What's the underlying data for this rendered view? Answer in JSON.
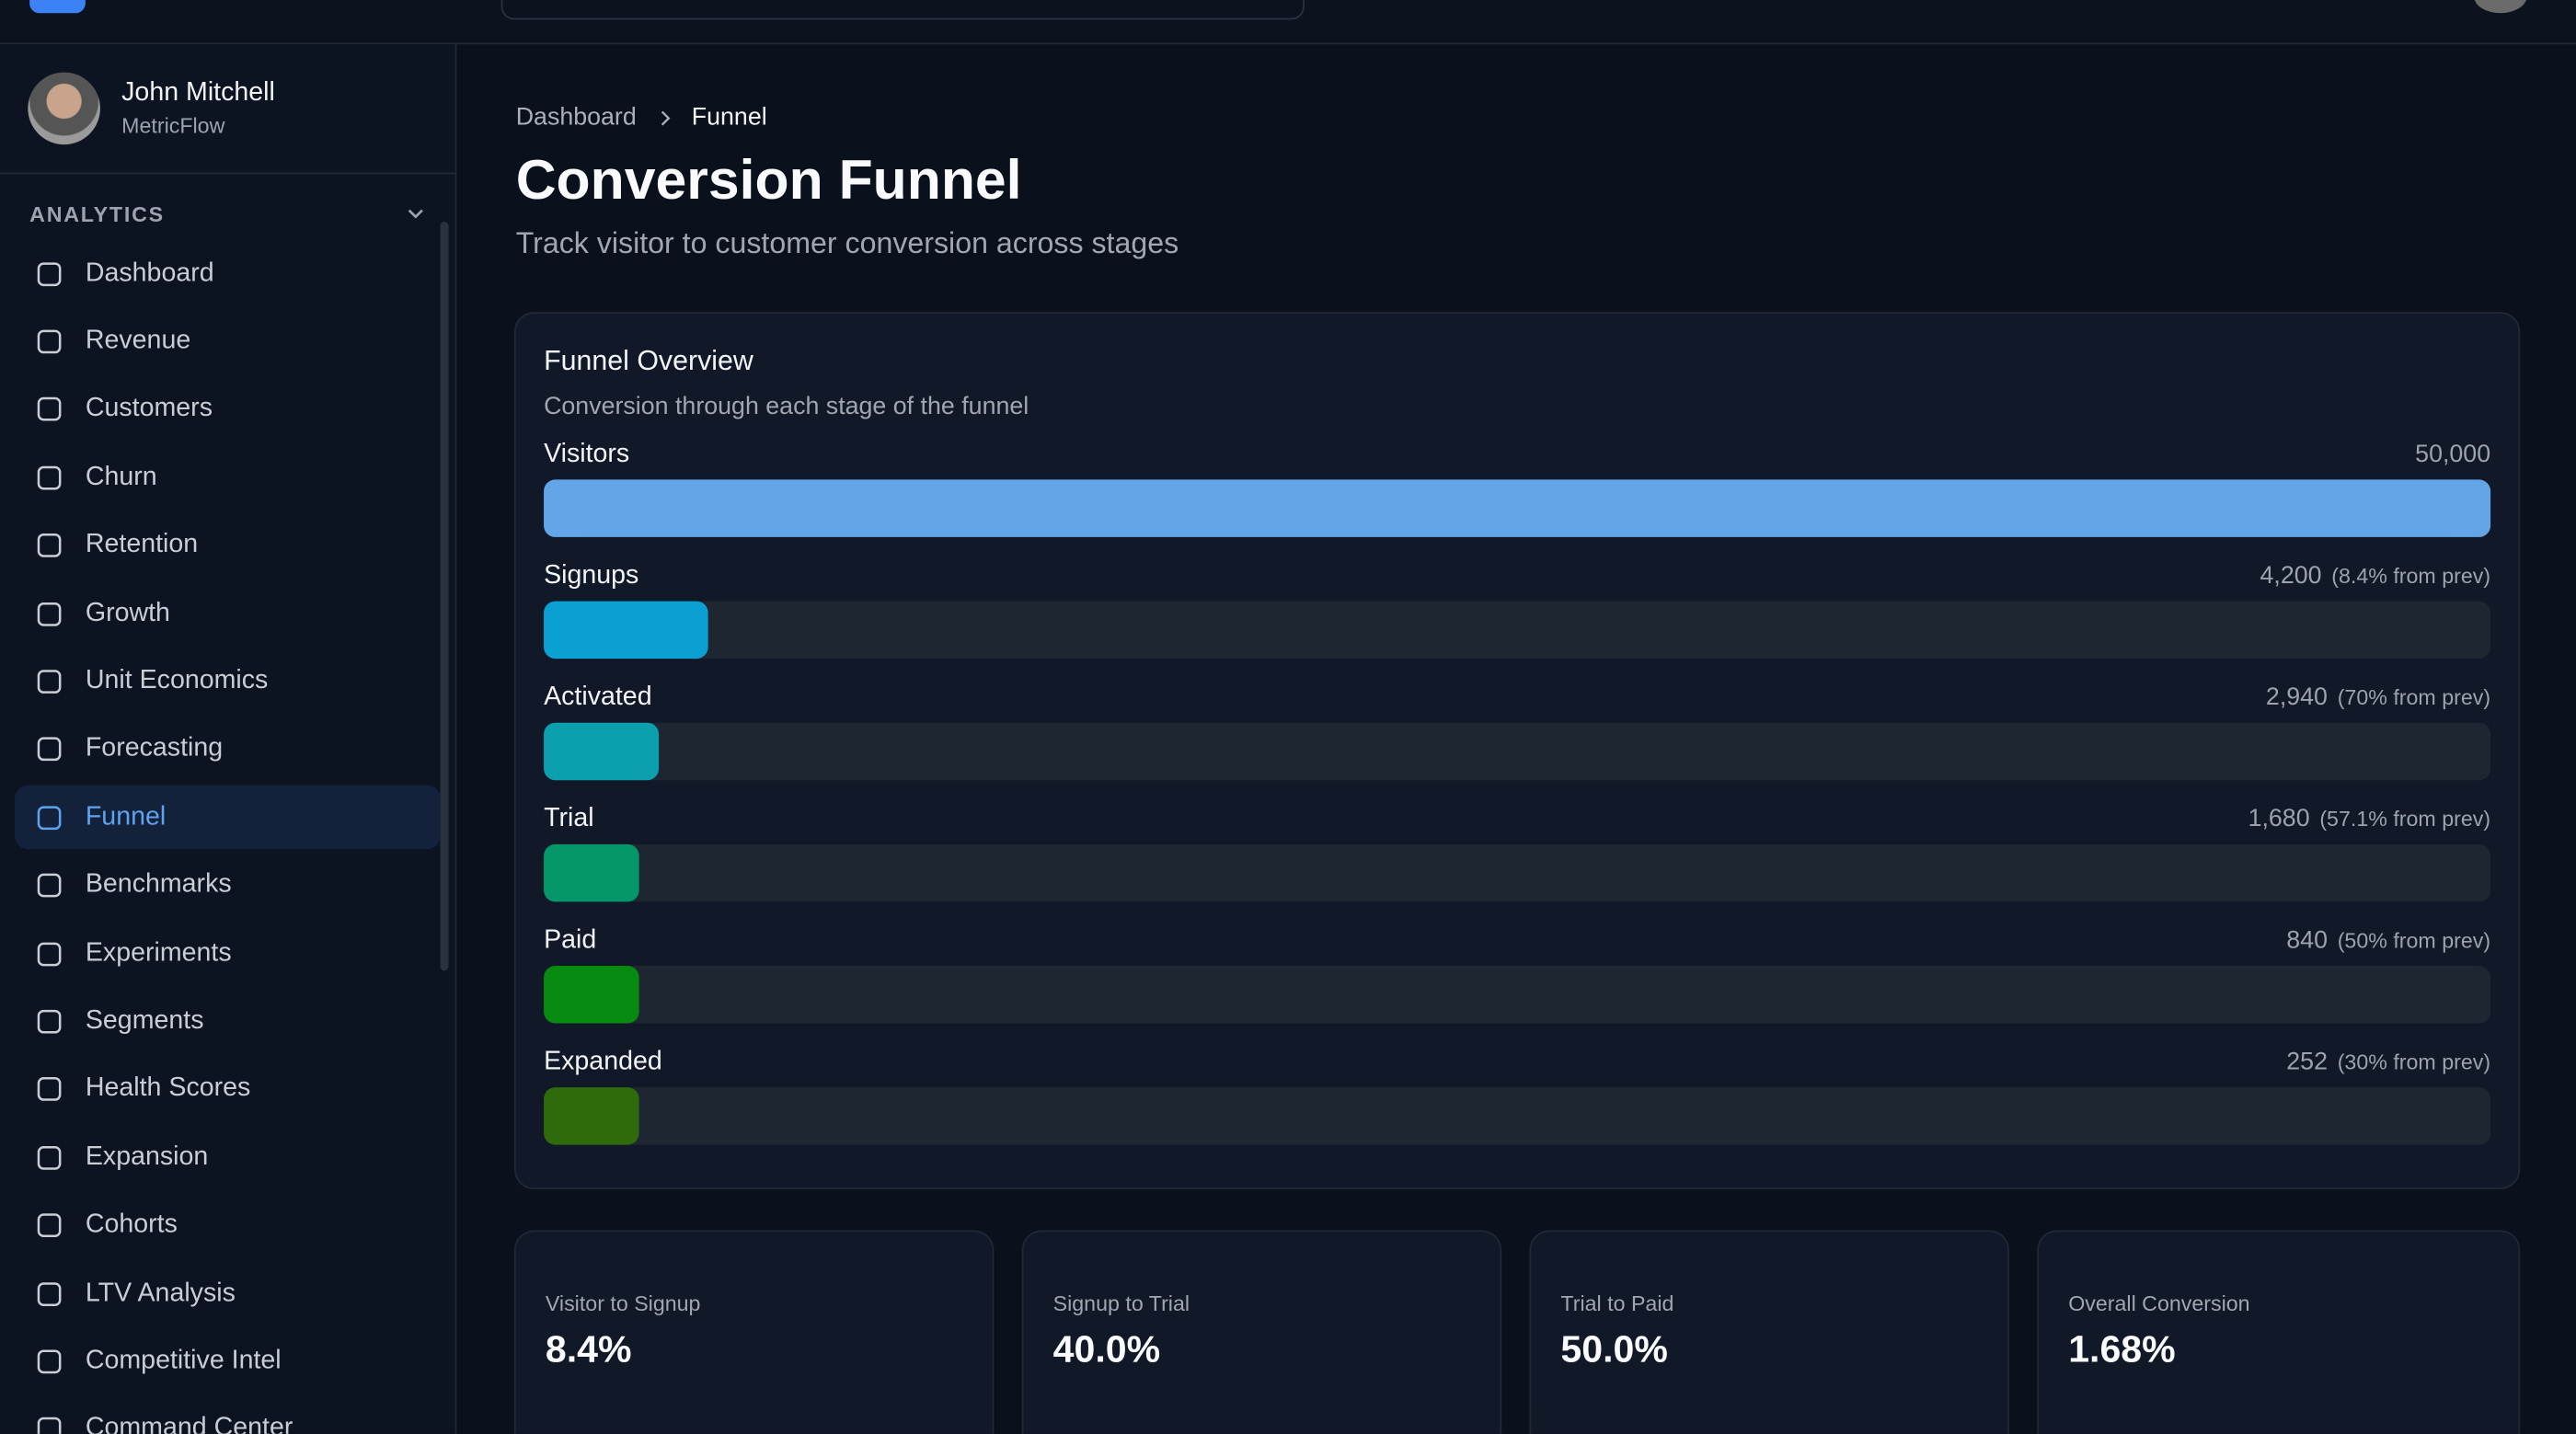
{
  "user": {
    "name": "John Mitchell",
    "org": "MetricFlow"
  },
  "sidebar": {
    "section": "ANALYTICS",
    "items": [
      "Dashboard",
      "Revenue",
      "Customers",
      "Churn",
      "Retention",
      "Growth",
      "Unit Economics",
      "Forecasting",
      "Funnel",
      "Benchmarks",
      "Experiments",
      "Segments",
      "Health Scores",
      "Expansion",
      "Cohorts",
      "LTV Analysis",
      "Competitive Intel",
      "Command Center"
    ],
    "active": 8
  },
  "breadcrumb": [
    "Dashboard",
    "Funnel"
  ],
  "header": {
    "title": "Conversion Funnel",
    "subtitle": "Track visitor to customer conversion across stages"
  },
  "funnel": {
    "title": "Funnel Overview",
    "subtitle": "Conversion through each stage of the funnel",
    "stages": [
      {
        "name": "Visitors",
        "value": 50000,
        "value_label": "50,000",
        "color": "#62a6e8"
      },
      {
        "name": "Signups",
        "value": 4200,
        "value_label": "4,200",
        "note": "(8.4% from prev)",
        "color": "#0aa1d2"
      },
      {
        "name": "Activated",
        "value": 2940,
        "value_label": "2,940",
        "note": "(70% from prev)",
        "color": "#0c9fae"
      },
      {
        "name": "Trial",
        "value": 1680,
        "value_label": "1,680",
        "note": "(57.1% from prev)",
        "color": "#059669"
      },
      {
        "name": "Paid",
        "value": 840,
        "value_label": "840",
        "note": "(50% from prev)",
        "color": "#068a10"
      },
      {
        "name": "Expanded",
        "value": 252,
        "value_label": "252",
        "note": "(30% from prev)",
        "color": "#2f6a0b"
      }
    ]
  },
  "kpis": [
    {
      "label": "Visitor to Signup",
      "value": "8.4%"
    },
    {
      "label": "Signup to Trial",
      "value": "40.0%"
    },
    {
      "label": "Trial to Paid",
      "value": "50.0%"
    },
    {
      "label": "Overall Conversion",
      "value": "1.68%"
    }
  ]
}
